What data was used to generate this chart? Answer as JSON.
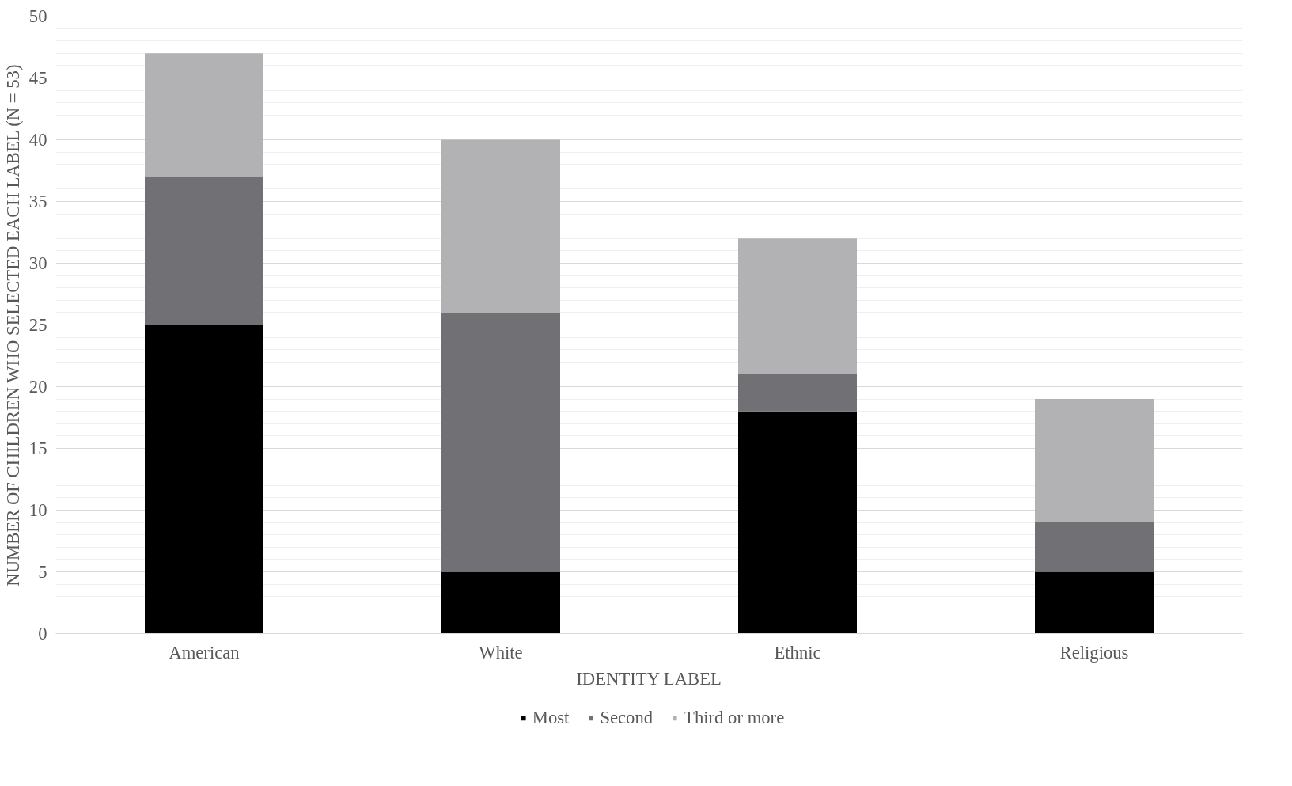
{
  "chart_data": {
    "type": "bar",
    "stacked": true,
    "xlabel": "IDENTITY LABEL",
    "ylabel": "NUMBER OF CHILDREN WHO SELECTED EACH LABEL (N = 53)",
    "categories": [
      "American",
      "White",
      "Ethnic",
      "Religious"
    ],
    "series": [
      {
        "name": "Most",
        "color": "#000000",
        "values": [
          25,
          5,
          18,
          5
        ]
      },
      {
        "name": "Second",
        "color": "#717075",
        "values": [
          12,
          21,
          3,
          4
        ]
      },
      {
        "name": "Third or more",
        "color": "#b2b2b4",
        "values": [
          10,
          14,
          11,
          10
        ]
      }
    ],
    "ylim": [
      0,
      50
    ],
    "yticks": [
      0,
      5,
      10,
      15,
      20,
      25,
      30,
      35,
      40,
      45,
      50
    ],
    "grid": "y",
    "legend": "bottom"
  }
}
